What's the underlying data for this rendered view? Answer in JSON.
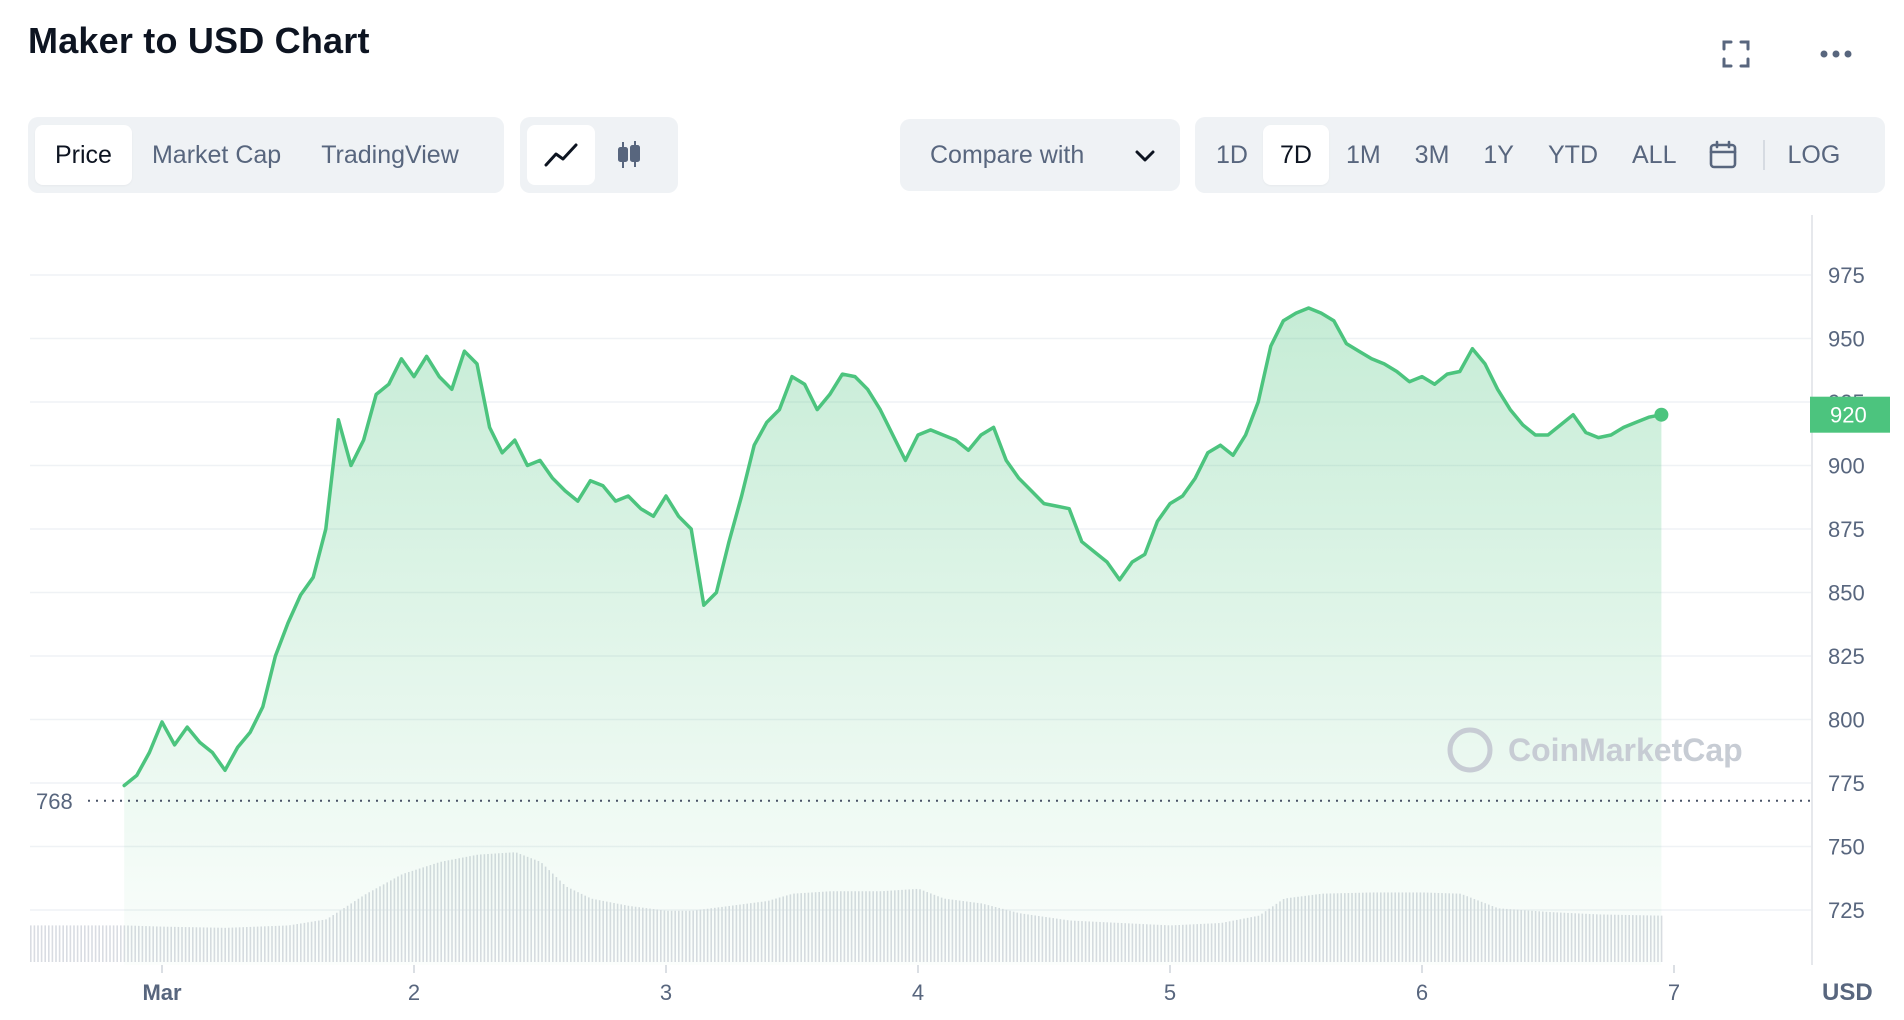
{
  "title": "Maker to USD Chart",
  "header_icons": [
    "fullscreen-icon",
    "more-icon"
  ],
  "tabs": [
    "Price",
    "Market Cap",
    "TradingView"
  ],
  "active_tab": "Price",
  "chart_type_icons": [
    "line-chart-icon",
    "candlestick-icon"
  ],
  "compare_label": "Compare with",
  "ranges": [
    "1D",
    "7D",
    "1M",
    "3M",
    "1Y",
    "YTD",
    "ALL"
  ],
  "active_range": "7D",
  "log_label": "LOG",
  "colors": {
    "line": "#4cc47e",
    "accent": "#4cc47e",
    "text": "#0d1421",
    "muted": "#58667e",
    "volume": "#d5d8de"
  },
  "chart_data": {
    "type": "area",
    "x_ticks": [
      "Mar",
      "2",
      "3",
      "4",
      "5",
      "6",
      "7"
    ],
    "y_ticks": [
      "975",
      "950",
      "925",
      "900",
      "875",
      "850",
      "825",
      "800",
      "775",
      "750",
      "725"
    ],
    "ylim": [
      712,
      998
    ],
    "xlim": [
      1.35,
      7.5
    ],
    "currency_label": "USD",
    "current_price": 920,
    "current_label": "920",
    "reference_price": 768,
    "reference_label": "768",
    "watermark": "CoinMarketCap",
    "series": [
      {
        "points": [
          [
            1.35,
            774
          ],
          [
            1.4,
            778
          ],
          [
            1.45,
            787
          ],
          [
            1.5,
            799
          ],
          [
            1.55,
            790
          ],
          [
            1.6,
            797
          ],
          [
            1.65,
            791
          ],
          [
            1.7,
            787
          ],
          [
            1.75,
            780
          ],
          [
            1.8,
            789
          ],
          [
            1.85,
            795
          ],
          [
            1.9,
            805
          ],
          [
            1.95,
            825
          ],
          [
            2.0,
            838
          ],
          [
            2.05,
            849
          ],
          [
            2.1,
            856
          ],
          [
            2.15,
            875
          ],
          [
            2.2,
            918
          ],
          [
            2.25,
            900
          ],
          [
            2.3,
            910
          ],
          [
            2.35,
            928
          ],
          [
            2.4,
            932
          ],
          [
            2.45,
            942
          ],
          [
            2.5,
            935
          ],
          [
            2.55,
            943
          ],
          [
            2.6,
            935
          ],
          [
            2.65,
            930
          ],
          [
            2.7,
            945
          ],
          [
            2.75,
            940
          ],
          [
            2.8,
            915
          ],
          [
            2.85,
            905
          ],
          [
            2.9,
            910
          ],
          [
            2.95,
            900
          ],
          [
            3.0,
            902
          ],
          [
            3.05,
            895
          ],
          [
            3.1,
            890
          ],
          [
            3.15,
            886
          ],
          [
            3.2,
            894
          ],
          [
            3.25,
            892
          ],
          [
            3.3,
            886
          ],
          [
            3.35,
            888
          ],
          [
            3.4,
            883
          ],
          [
            3.45,
            880
          ],
          [
            3.5,
            888
          ],
          [
            3.55,
            880
          ],
          [
            3.6,
            875
          ],
          [
            3.65,
            845
          ],
          [
            3.7,
            850
          ],
          [
            3.75,
            870
          ],
          [
            3.8,
            888
          ],
          [
            3.85,
            908
          ],
          [
            3.9,
            917
          ],
          [
            3.95,
            922
          ],
          [
            4.0,
            935
          ],
          [
            4.05,
            932
          ],
          [
            4.1,
            922
          ],
          [
            4.15,
            928
          ],
          [
            4.2,
            936
          ],
          [
            4.25,
            935
          ],
          [
            4.3,
            930
          ],
          [
            4.35,
            922
          ],
          [
            4.4,
            912
          ],
          [
            4.45,
            902
          ],
          [
            4.5,
            912
          ],
          [
            4.55,
            914
          ],
          [
            4.6,
            912
          ],
          [
            4.65,
            910
          ],
          [
            4.7,
            906
          ],
          [
            4.75,
            912
          ],
          [
            4.8,
            915
          ],
          [
            4.85,
            902
          ],
          [
            4.9,
            895
          ],
          [
            4.95,
            890
          ],
          [
            5.0,
            885
          ],
          [
            5.05,
            884
          ],
          [
            5.1,
            883
          ],
          [
            5.15,
            870
          ],
          [
            5.2,
            866
          ],
          [
            5.25,
            862
          ],
          [
            5.3,
            855
          ],
          [
            5.35,
            862
          ],
          [
            5.4,
            865
          ],
          [
            5.45,
            878
          ],
          [
            5.5,
            885
          ],
          [
            5.55,
            888
          ],
          [
            5.6,
            895
          ],
          [
            5.65,
            905
          ],
          [
            5.7,
            908
          ],
          [
            5.75,
            904
          ],
          [
            5.8,
            912
          ],
          [
            5.85,
            925
          ],
          [
            5.9,
            947
          ],
          [
            5.95,
            957
          ],
          [
            6.0,
            960
          ],
          [
            6.05,
            962
          ],
          [
            6.1,
            960
          ],
          [
            6.15,
            957
          ],
          [
            6.2,
            948
          ],
          [
            6.25,
            945
          ],
          [
            6.3,
            942
          ],
          [
            6.35,
            940
          ],
          [
            6.4,
            937
          ],
          [
            6.45,
            933
          ],
          [
            6.5,
            935
          ],
          [
            6.55,
            932
          ],
          [
            6.6,
            936
          ],
          [
            6.65,
            937
          ],
          [
            6.7,
            946
          ],
          [
            6.75,
            940
          ],
          [
            6.8,
            930
          ],
          [
            6.85,
            922
          ],
          [
            6.9,
            916
          ],
          [
            6.95,
            912
          ],
          [
            7.0,
            912
          ],
          [
            7.05,
            916
          ],
          [
            7.1,
            920
          ],
          [
            7.15,
            913
          ],
          [
            7.2,
            911
          ],
          [
            7.25,
            912
          ],
          [
            7.3,
            915
          ],
          [
            7.35,
            917
          ],
          [
            7.4,
            919
          ],
          [
            7.45,
            920
          ]
        ]
      }
    ],
    "volume": [
      [
        1.35,
        0.3
      ],
      [
        1.5,
        0.29
      ],
      [
        1.75,
        0.28
      ],
      [
        2.0,
        0.3
      ],
      [
        2.15,
        0.35
      ],
      [
        2.3,
        0.55
      ],
      [
        2.45,
        0.72
      ],
      [
        2.6,
        0.82
      ],
      [
        2.75,
        0.88
      ],
      [
        2.9,
        0.9
      ],
      [
        3.0,
        0.82
      ],
      [
        3.1,
        0.62
      ],
      [
        3.2,
        0.52
      ],
      [
        3.35,
        0.46
      ],
      [
        3.5,
        0.42
      ],
      [
        3.6,
        0.42
      ],
      [
        3.75,
        0.46
      ],
      [
        3.9,
        0.5
      ],
      [
        4.0,
        0.56
      ],
      [
        4.15,
        0.58
      ],
      [
        4.35,
        0.58
      ],
      [
        4.5,
        0.6
      ],
      [
        4.6,
        0.52
      ],
      [
        4.75,
        0.48
      ],
      [
        4.9,
        0.4
      ],
      [
        5.1,
        0.34
      ],
      [
        5.3,
        0.32
      ],
      [
        5.5,
        0.3
      ],
      [
        5.7,
        0.32
      ],
      [
        5.85,
        0.38
      ],
      [
        5.95,
        0.52
      ],
      [
        6.1,
        0.56
      ],
      [
        6.3,
        0.57
      ],
      [
        6.5,
        0.57
      ],
      [
        6.65,
        0.56
      ],
      [
        6.8,
        0.44
      ],
      [
        7.0,
        0.41
      ],
      [
        7.2,
        0.39
      ],
      [
        7.45,
        0.38
      ]
    ]
  }
}
